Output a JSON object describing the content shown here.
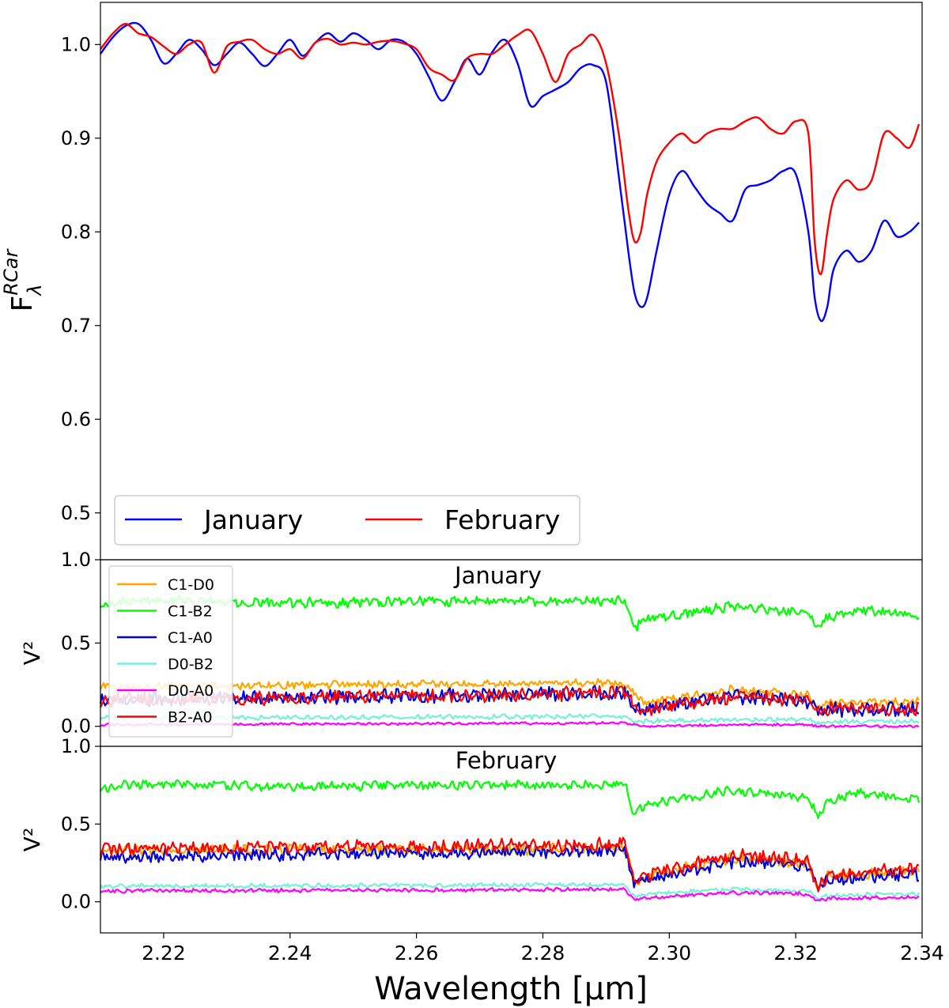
{
  "figure": {
    "xlabel": "Wavelength [μm]",
    "xlim": [
      2.21,
      2.34
    ],
    "x_ticks": [
      "2.22",
      "2.24",
      "2.26",
      "2.28",
      "2.30",
      "2.32",
      "2.34"
    ],
    "x_tick_values": [
      2.22,
      2.24,
      2.26,
      2.28,
      2.3,
      2.32,
      2.34
    ]
  },
  "chart_data": [
    {
      "type": "line",
      "ylabel": "F",
      "ylabel_sub": "λ",
      "ylabel_sup": "RCar",
      "ylim": [
        0.45,
        1.045
      ],
      "y_ticks": [
        "0.5",
        "0.6",
        "0.7",
        "0.8",
        "0.9",
        "1.0"
      ],
      "y_tick_values": [
        0.5,
        0.6,
        0.7,
        0.8,
        0.9,
        1.0
      ],
      "legend_position": "lower-left",
      "series": [
        {
          "name": "January",
          "color": "#0000ff",
          "x": [
            2.21,
            2.212,
            2.214,
            2.216,
            2.218,
            2.22,
            2.222,
            2.224,
            2.226,
            2.228,
            2.23,
            2.232,
            2.234,
            2.236,
            2.238,
            2.24,
            2.242,
            2.244,
            2.246,
            2.248,
            2.25,
            2.252,
            2.254,
            2.256,
            2.258,
            2.26,
            2.262,
            2.264,
            2.266,
            2.268,
            2.27,
            2.272,
            2.274,
            2.276,
            2.278,
            2.28,
            2.282,
            2.284,
            2.286,
            2.288,
            2.29,
            2.292,
            2.2935,
            2.2945,
            2.2955,
            2.2965,
            2.298,
            2.3,
            2.302,
            2.304,
            2.306,
            2.308,
            2.31,
            2.312,
            2.314,
            2.316,
            2.318,
            2.32,
            2.322,
            2.323,
            2.324,
            2.325,
            2.326,
            2.328,
            2.33,
            2.332,
            2.334,
            2.336,
            2.338,
            2.3395
          ],
          "values": [
            0.99,
            1.008,
            1.02,
            1.022,
            1.005,
            0.98,
            0.99,
            1.005,
            0.995,
            0.978,
            0.99,
            1.002,
            0.99,
            0.977,
            0.99,
            1.005,
            0.988,
            1.002,
            1.012,
            1.003,
            1.012,
            1.005,
            0.995,
            1.005,
            1.003,
            0.99,
            0.965,
            0.94,
            0.96,
            0.985,
            0.968,
            0.992,
            1.005,
            0.98,
            0.935,
            0.945,
            0.952,
            0.96,
            0.975,
            0.978,
            0.96,
            0.86,
            0.78,
            0.735,
            0.72,
            0.73,
            0.78,
            0.84,
            0.865,
            0.848,
            0.83,
            0.82,
            0.812,
            0.845,
            0.85,
            0.855,
            0.865,
            0.862,
            0.8,
            0.73,
            0.705,
            0.72,
            0.76,
            0.78,
            0.768,
            0.78,
            0.812,
            0.795,
            0.8,
            0.81
          ]
        },
        {
          "name": "February",
          "color": "#ff0000",
          "x": [
            2.21,
            2.212,
            2.214,
            2.216,
            2.218,
            2.22,
            2.222,
            2.224,
            2.226,
            2.228,
            2.23,
            2.232,
            2.234,
            2.236,
            2.238,
            2.24,
            2.242,
            2.244,
            2.246,
            2.248,
            2.25,
            2.252,
            2.254,
            2.256,
            2.258,
            2.26,
            2.262,
            2.264,
            2.266,
            2.268,
            2.27,
            2.272,
            2.274,
            2.276,
            2.278,
            2.28,
            2.282,
            2.284,
            2.286,
            2.288,
            2.29,
            2.292,
            2.2935,
            2.2945,
            2.2955,
            2.2965,
            2.298,
            2.3,
            2.302,
            2.304,
            2.306,
            2.308,
            2.31,
            2.312,
            2.314,
            2.316,
            2.318,
            2.32,
            2.322,
            2.323,
            2.324,
            2.325,
            2.326,
            2.328,
            2.33,
            2.332,
            2.334,
            2.336,
            2.338,
            2.3395
          ],
          "values": [
            0.995,
            1.012,
            1.022,
            1.012,
            1.008,
            0.998,
            0.99,
            1.0,
            1.002,
            0.97,
            0.998,
            1.003,
            1.005,
            0.995,
            0.99,
            0.995,
            0.985,
            1.002,
            1.006,
            1.0,
            1.002,
            1.0,
            1.003,
            1.004,
            1.001,
            0.995,
            0.975,
            0.968,
            0.962,
            0.985,
            0.99,
            0.99,
            1.0,
            1.01,
            1.015,
            0.99,
            0.96,
            0.99,
            1.0,
            1.01,
            0.98,
            0.905,
            0.825,
            0.79,
            0.8,
            0.84,
            0.875,
            0.895,
            0.905,
            0.895,
            0.905,
            0.91,
            0.91,
            0.918,
            0.922,
            0.91,
            0.905,
            0.918,
            0.905,
            0.79,
            0.755,
            0.8,
            0.835,
            0.855,
            0.845,
            0.855,
            0.905,
            0.9,
            0.89,
            0.915
          ]
        }
      ]
    },
    {
      "type": "line",
      "title": "January",
      "ylabel": "V²",
      "ylim": [
        -0.12,
        1.0
      ],
      "y_ticks": [
        "0.0",
        "0.5",
        "1.0"
      ],
      "y_tick_values": [
        0.0,
        0.5,
        1.0
      ],
      "legend_position": "left",
      "noise_amplitude": [
        0.02,
        0.025,
        0.035,
        0.012,
        0.006,
        0.035
      ],
      "series": [
        {
          "name": "C1-D0",
          "color": "#ffa500",
          "x": [
            2.21,
            2.293,
            2.2945,
            2.296,
            2.31,
            2.322,
            2.3235,
            2.325,
            2.3395
          ],
          "values": [
            0.24,
            0.26,
            0.2,
            0.14,
            0.22,
            0.19,
            0.11,
            0.14,
            0.15
          ]
        },
        {
          "name": "C1-B2",
          "color": "#00ff00",
          "x": [
            2.21,
            2.215,
            2.24,
            2.26,
            2.285,
            2.293,
            2.2945,
            2.296,
            2.31,
            2.322,
            2.3235,
            2.325,
            2.33,
            2.3395
          ],
          "values": [
            0.73,
            0.76,
            0.74,
            0.75,
            0.75,
            0.76,
            0.58,
            0.64,
            0.72,
            0.68,
            0.58,
            0.65,
            0.7,
            0.66
          ]
        },
        {
          "name": "C1-A0",
          "color": "#0000dd",
          "x": [
            2.21,
            2.293,
            2.2945,
            2.296,
            2.31,
            2.322,
            2.3235,
            2.325,
            2.3395
          ],
          "values": [
            0.16,
            0.2,
            0.11,
            0.1,
            0.18,
            0.15,
            0.08,
            0.1,
            0.1
          ]
        },
        {
          "name": "D0-B2",
          "color": "#77f0d8",
          "x": [
            2.21,
            2.293,
            2.2945,
            2.296,
            2.31,
            2.322,
            2.3235,
            2.325,
            2.3395
          ],
          "values": [
            0.05,
            0.06,
            0.03,
            0.03,
            0.04,
            0.04,
            0.02,
            0.03,
            0.03
          ]
        },
        {
          "name": "D0-A0",
          "color": "#ff00ff",
          "x": [
            2.21,
            2.293,
            2.2945,
            2.296,
            2.31,
            2.322,
            2.3235,
            2.325,
            2.3395
          ],
          "values": [
            0.01,
            0.02,
            0.01,
            0.0,
            0.01,
            0.01,
            0.0,
            0.0,
            0.0
          ]
        },
        {
          "name": "B2-A0",
          "color": "#ff0000",
          "x": [
            2.21,
            2.293,
            2.2945,
            2.296,
            2.31,
            2.322,
            2.3235,
            2.325,
            2.3395
          ],
          "values": [
            0.16,
            0.2,
            0.12,
            0.1,
            0.18,
            0.16,
            0.08,
            0.1,
            0.1
          ]
        }
      ]
    },
    {
      "type": "line",
      "title": "February",
      "ylabel": "V²",
      "ylim": [
        -0.2,
        1.0
      ],
      "y_ticks": [
        "0.0",
        "0.5",
        "1.0"
      ],
      "y_tick_values": [
        0.0,
        0.5,
        1.0
      ],
      "noise_amplitude": [
        0.03,
        0.025,
        0.035,
        0.012,
        0.01,
        0.035
      ],
      "series": [
        {
          "name": "C1-D0",
          "color": "#ffa500",
          "x": [
            2.21,
            2.293,
            2.2945,
            2.296,
            2.31,
            2.322,
            2.3235,
            2.325,
            2.3395
          ],
          "values": [
            0.33,
            0.34,
            0.12,
            0.16,
            0.28,
            0.25,
            0.08,
            0.16,
            0.2
          ]
        },
        {
          "name": "C1-B2",
          "color": "#00ff00",
          "x": [
            2.21,
            2.215,
            2.24,
            2.26,
            2.285,
            2.293,
            2.2945,
            2.296,
            2.31,
            2.322,
            2.3235,
            2.325,
            2.33,
            2.3395
          ],
          "values": [
            0.73,
            0.76,
            0.74,
            0.75,
            0.75,
            0.76,
            0.55,
            0.62,
            0.72,
            0.67,
            0.55,
            0.64,
            0.7,
            0.66
          ]
        },
        {
          "name": "C1-A0",
          "color": "#0000dd",
          "x": [
            2.21,
            2.293,
            2.2945,
            2.296,
            2.31,
            2.322,
            2.3235,
            2.325,
            2.3395
          ],
          "values": [
            0.29,
            0.33,
            0.1,
            0.14,
            0.26,
            0.24,
            0.07,
            0.14,
            0.18
          ]
        },
        {
          "name": "D0-B2",
          "color": "#77f0d8",
          "x": [
            2.21,
            2.293,
            2.2945,
            2.296,
            2.31,
            2.322,
            2.3235,
            2.325,
            2.3395
          ],
          "values": [
            0.1,
            0.11,
            0.03,
            0.05,
            0.08,
            0.07,
            0.03,
            0.04,
            0.05
          ]
        },
        {
          "name": "D0-A0",
          "color": "#ff00ff",
          "x": [
            2.21,
            2.293,
            2.2945,
            2.296,
            2.31,
            2.322,
            2.3235,
            2.325,
            2.3395
          ],
          "values": [
            0.07,
            0.08,
            0.01,
            0.02,
            0.06,
            0.05,
            0.01,
            0.02,
            0.03
          ]
        },
        {
          "name": "B2-A0",
          "color": "#ff0000",
          "x": [
            2.21,
            2.293,
            2.2945,
            2.296,
            2.31,
            2.322,
            2.3235,
            2.325,
            2.3395
          ],
          "values": [
            0.34,
            0.37,
            0.13,
            0.17,
            0.3,
            0.27,
            0.08,
            0.17,
            0.22
          ]
        }
      ]
    }
  ]
}
